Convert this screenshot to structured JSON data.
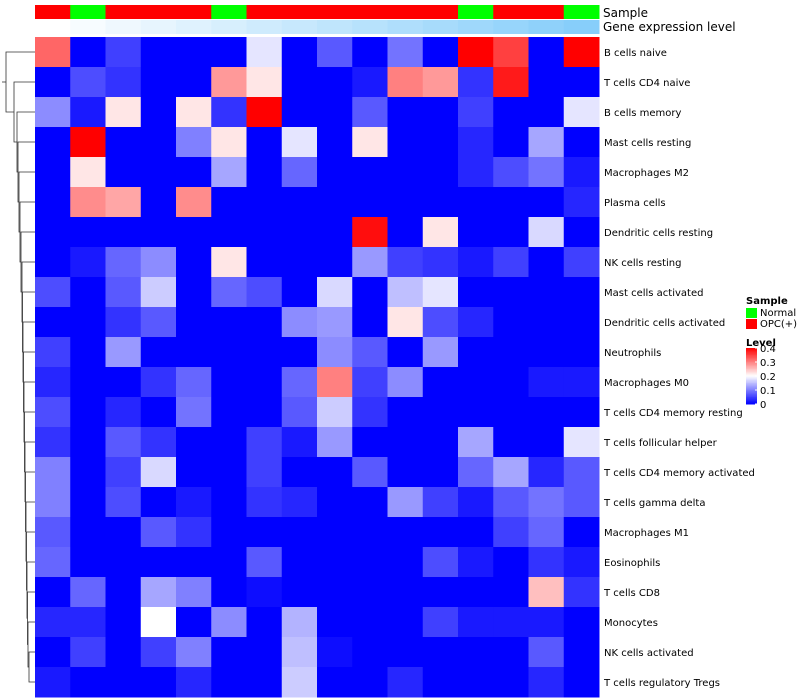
{
  "chart_data": {
    "type": "heatmap",
    "annotation_labels": {
      "sample": "Sample",
      "gene_expression": "Gene expression level"
    },
    "rows": [
      "B cells naive",
      "T cells CD4 naive",
      "B cells memory",
      "Mast cells resting",
      "Macrophages M2",
      "Plasma cells",
      "Dendritic cells resting",
      "NK cells resting",
      "Mast cells activated",
      "Dendritic cells activated",
      "Neutrophils",
      "Macrophages M0",
      "T cells CD4 memory resting",
      "T cells follicular helper",
      "T cells CD4 memory activated",
      "T cells gamma delta",
      "Macrophages M1",
      "Eosinophils",
      "T cells CD8",
      "Monocytes",
      "NK cells activated",
      "T cells regulatory  Tregs"
    ],
    "sample_groups": [
      "OPC(+)",
      "Normal",
      "OPC(+)",
      "OPC(+)",
      "OPC(+)",
      "Normal",
      "OPC(+)",
      "OPC(+)",
      "OPC(+)",
      "OPC(+)",
      "OPC(+)",
      "OPC(+)",
      "Normal",
      "OPC(+)",
      "OPC(+)",
      "Normal"
    ],
    "gene_expression_level": [
      0.02,
      0.04,
      0.06,
      0.08,
      0.1,
      0.12,
      0.14,
      0.16,
      0.18,
      0.2,
      0.22,
      0.24,
      0.26,
      0.28,
      0.3,
      0.32
    ],
    "values": [
      [
        0.32,
        0.0,
        0.05,
        0.0,
        0.0,
        0.0,
        0.18,
        0.0,
        0.07,
        0.0,
        0.09,
        0.0,
        0.4,
        0.35,
        0.0,
        0.4
      ],
      [
        0.0,
        0.06,
        0.04,
        0.0,
        0.0,
        0.28,
        0.22,
        0.0,
        0.0,
        0.02,
        0.3,
        0.28,
        0.04,
        0.38,
        0.0,
        0.0
      ],
      [
        0.11,
        0.02,
        0.22,
        0.0,
        0.22,
        0.04,
        0.4,
        0.0,
        0.0,
        0.07,
        0.0,
        0.0,
        0.05,
        0.0,
        0.0,
        0.18
      ],
      [
        0.0,
        0.4,
        0.0,
        0.0,
        0.1,
        0.22,
        0.0,
        0.18,
        0.0,
        0.22,
        0.0,
        0.0,
        0.03,
        0.0,
        0.13,
        0.0
      ],
      [
        0.0,
        0.22,
        0.0,
        0.0,
        0.0,
        0.13,
        0.0,
        0.08,
        0.0,
        0.0,
        0.0,
        0.0,
        0.03,
        0.06,
        0.09,
        0.02
      ],
      [
        0.0,
        0.29,
        0.27,
        0.0,
        0.29,
        0.0,
        0.0,
        0.0,
        0.0,
        0.0,
        0.0,
        0.0,
        0.0,
        0.0,
        0.0,
        0.03
      ],
      [
        0.0,
        0.0,
        0.0,
        0.0,
        0.0,
        0.0,
        0.0,
        0.0,
        0.0,
        0.39,
        0.0,
        0.22,
        0.0,
        0.0,
        0.17,
        0.0
      ],
      [
        0.0,
        0.02,
        0.08,
        0.11,
        0.0,
        0.22,
        0.0,
        0.0,
        0.0,
        0.12,
        0.05,
        0.04,
        0.02,
        0.05,
        0.0,
        0.05
      ],
      [
        0.06,
        0.0,
        0.07,
        0.16,
        0.0,
        0.08,
        0.06,
        0.0,
        0.17,
        0.0,
        0.15,
        0.18,
        0.0,
        0.0,
        0.0,
        0.0
      ],
      [
        0.0,
        0.0,
        0.04,
        0.07,
        0.0,
        0.0,
        0.0,
        0.11,
        0.12,
        0.0,
        0.22,
        0.06,
        0.03,
        0.0,
        0.0,
        0.0
      ],
      [
        0.05,
        0.0,
        0.12,
        0.0,
        0.0,
        0.0,
        0.0,
        0.0,
        0.11,
        0.07,
        0.0,
        0.12,
        0.0,
        0.0,
        0.0,
        0.0
      ],
      [
        0.03,
        0.0,
        0.0,
        0.04,
        0.08,
        0.0,
        0.0,
        0.08,
        0.3,
        0.05,
        0.11,
        0.0,
        0.0,
        0.0,
        0.02,
        0.02
      ],
      [
        0.06,
        0.0,
        0.03,
        0.0,
        0.09,
        0.0,
        0.0,
        0.07,
        0.16,
        0.04,
        0.0,
        0.0,
        0.0,
        0.0,
        0.0,
        0.0
      ],
      [
        0.04,
        0.0,
        0.07,
        0.04,
        0.0,
        0.0,
        0.05,
        0.02,
        0.12,
        0.0,
        0.0,
        0.0,
        0.13,
        0.0,
        0.0,
        0.18
      ],
      [
        0.1,
        0.0,
        0.05,
        0.17,
        0.0,
        0.0,
        0.05,
        0.0,
        0.0,
        0.07,
        0.0,
        0.0,
        0.08,
        0.13,
        0.03,
        0.07
      ],
      [
        0.1,
        0.0,
        0.06,
        0.0,
        0.02,
        0.0,
        0.04,
        0.03,
        0.0,
        0.0,
        0.12,
        0.05,
        0.02,
        0.07,
        0.09,
        0.07
      ],
      [
        0.07,
        0.0,
        0.0,
        0.07,
        0.04,
        0.0,
        0.0,
        0.0,
        0.0,
        0.0,
        0.0,
        0.0,
        0.0,
        0.05,
        0.08,
        0.0
      ],
      [
        0.08,
        0.0,
        0.0,
        0.0,
        0.0,
        0.0,
        0.07,
        0.0,
        0.0,
        0.0,
        0.0,
        0.06,
        0.02,
        0.0,
        0.04,
        0.02
      ],
      [
        0.0,
        0.08,
        0.0,
        0.13,
        0.1,
        0.0,
        0.01,
        0.0,
        0.0,
        0.0,
        0.0,
        0.0,
        0.0,
        0.0,
        0.25,
        0.04
      ],
      [
        0.03,
        0.03,
        0.0,
        0.2,
        0.0,
        0.11,
        0.0,
        0.14,
        0.0,
        0.0,
        0.0,
        0.05,
        0.02,
        0.02,
        0.02,
        0.0
      ],
      [
        0.0,
        0.05,
        0.0,
        0.05,
        0.1,
        0.0,
        0.0,
        0.15,
        0.01,
        0.0,
        0.0,
        0.0,
        0.0,
        0.0,
        0.07,
        0.0
      ],
      [
        0.02,
        0.0,
        0.0,
        0.0,
        0.03,
        0.0,
        0.0,
        0.16,
        0.0,
        0.0,
        0.03,
        0.0,
        0.0,
        0.0,
        0.03,
        0.0
      ]
    ],
    "legend": {
      "sample_title": "Sample",
      "sample_items": [
        {
          "label": "Normal",
          "color": "#00ff00"
        },
        {
          "label": "OPC(+)",
          "color": "#ff0000"
        }
      ],
      "level_title": "Level",
      "level_ticks": [
        "0.4",
        "0.3",
        "0.2",
        "0.1",
        "0"
      ],
      "level_tick_values": [
        0.4,
        0.3,
        0.2,
        0.1,
        0.0
      ]
    },
    "color_scale": {
      "low": "#0000ff",
      "mid": "#ffffff",
      "high": "#ff0000",
      "min": 0,
      "mid_value": 0.2,
      "max": 0.4
    },
    "expression_color_scale": {
      "low": "#ffffff",
      "high": "#87cefa"
    }
  }
}
